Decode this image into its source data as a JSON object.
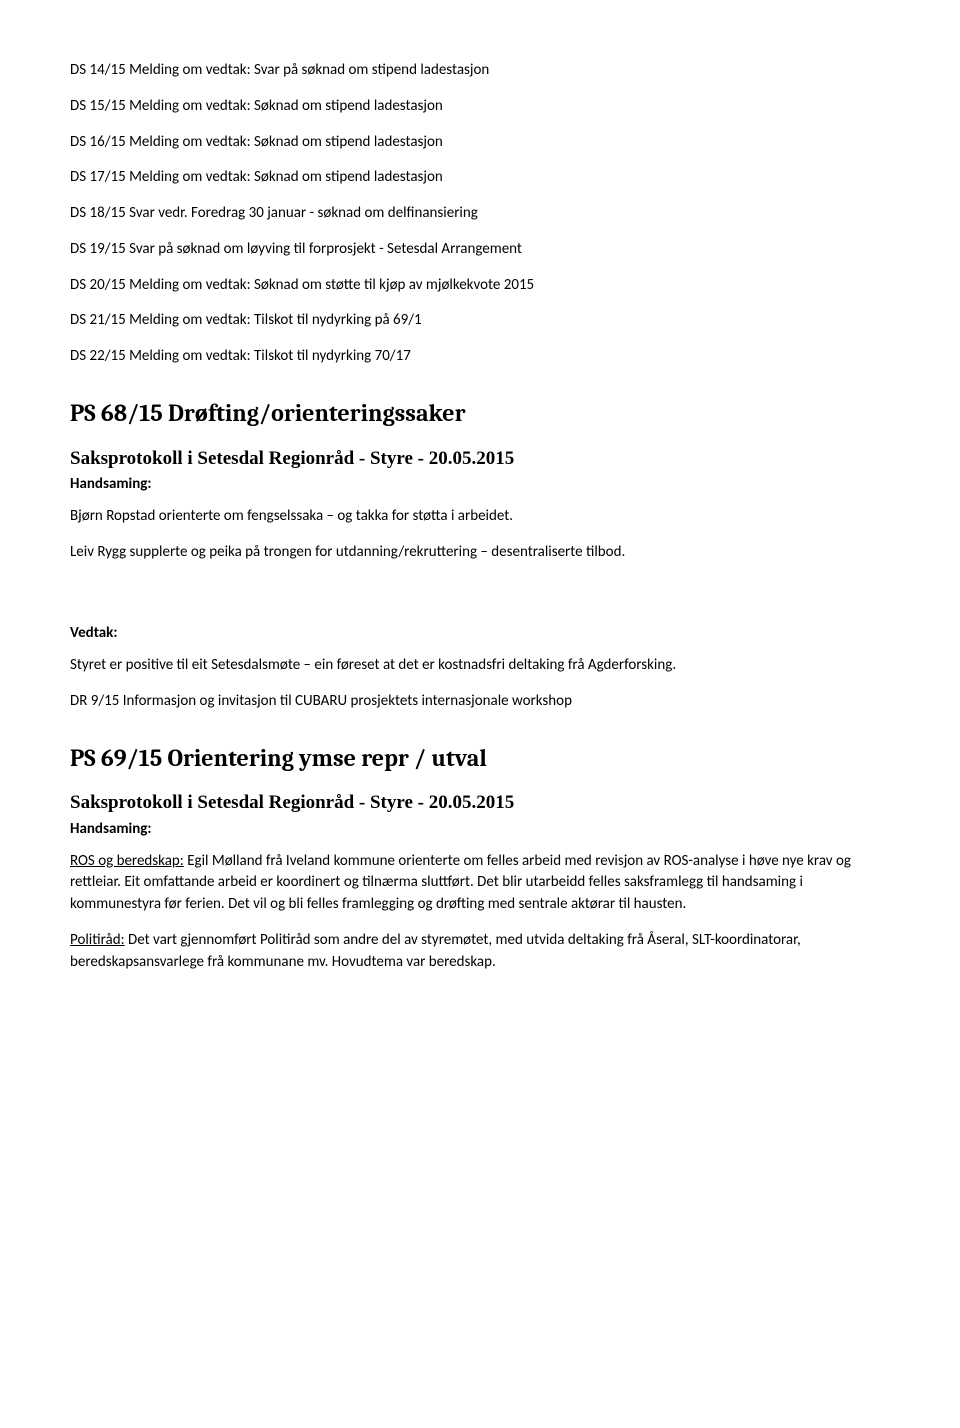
{
  "ds_items": [
    "DS 14/15 Melding om vedtak: Svar på søknad om stipend ladestasjon",
    "DS 15/15 Melding om vedtak: Søknad om stipend ladestasjon",
    "DS 16/15 Melding om vedtak: Søknad om stipend ladestasjon",
    "DS 17/15 Melding om vedtak: Søknad om stipend ladestasjon",
    "DS 18/15 Svar vedr. Foredrag 30 januar - søknad om delfinansiering",
    "DS 19/15 Svar på søknad om løyving til forprosjekt - Setesdal Arrangement",
    "DS 20/15 Melding om vedtak: Søknad om støtte til kjøp av mjølkekvote 2015",
    "DS 21/15 Melding om vedtak: Tilskot til nydyrking på 69/1",
    "DS 22/15 Melding om vedtak: Tilskot til nydyrking 70/17"
  ],
  "section68": {
    "heading": "PS 68/15 Drøfting/orienteringssaker",
    "subheading": "Saksprotokoll i Setesdal Regionråd - Styre - 20.05.2015",
    "handsaming_label": "Handsaming:",
    "p1": "Bjørn Ropstad orienterte om fengselssaka – og takka for støtta i arbeidet.",
    "p2": "Leiv Rygg supplerte og peika på trongen for utdanning/rekruttering – desentraliserte tilbod.",
    "vedtak_label": "Vedtak:",
    "vedtak_text": "Styret er positive til eit Setesdalsmøte – ein føreset at det er kostnadsfri deltaking frå Agderforsking.",
    "dr_text": "DR 9/15 Informasjon og invitasjon til CUBARU prosjektets internasjonale workshop"
  },
  "section69": {
    "heading": "PS 69/15 Orientering ymse repr / utval",
    "subheading": "Saksprotokoll i Setesdal Regionråd - Styre - 20.05.2015",
    "handsaming_label": "Handsaming:",
    "ros_prefix": "ROS og beredskap:",
    "ros_rest": " Egil Mølland frå Iveland kommune orienterte om felles arbeid med revisjon av ROS-analyse i høve nye krav og rettleiar.  Eit omfattande arbeid er koordinert og tilnærma sluttført. Det blir utarbeidd felles saksframlegg til handsaming i kommunestyra før ferien. Det vil og bli felles framlegging og drøfting med sentrale aktørar til hausten.",
    "politirad_prefix": "Politiråd:",
    "politirad_rest": " Det vart gjennomført Politiråd som andre del av styremøtet, med utvida deltaking frå Åseral, SLT-koordinatorar, beredskapsansvarlege frå kommunane mv. Hovudtema var beredskap."
  }
}
